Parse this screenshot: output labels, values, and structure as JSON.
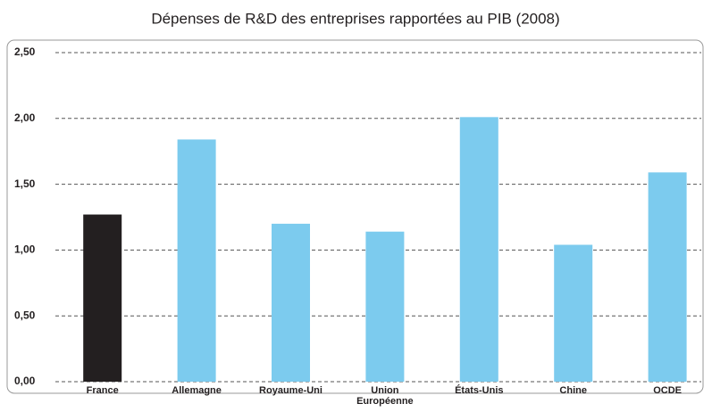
{
  "chart_data": {
    "type": "bar",
    "title": "Dépenses de R&D des entreprises rapportées au PIB (2008)",
    "categories": [
      "France",
      "Allemagne",
      "Royaume-Uni",
      "Union Européenne",
      "États-Unis",
      "Chine",
      "OCDE"
    ],
    "values": [
      1.27,
      1.84,
      1.2,
      1.14,
      2.01,
      1.04,
      1.59
    ],
    "colors": [
      "#231f20",
      "#7ccbee",
      "#7ccbee",
      "#7ccbee",
      "#7ccbee",
      "#7ccbee",
      "#7ccbee"
    ],
    "ylim": [
      0,
      2.5
    ],
    "yticks": [
      {
        "value": 0,
        "label": "0,00"
      },
      {
        "value": 0.5,
        "label": "0,50"
      },
      {
        "value": 1,
        "label": "1,00"
      },
      {
        "value": 1.5,
        "label": "1,50"
      },
      {
        "value": 2,
        "label": "2,00"
      },
      {
        "value": 2.5,
        "label": "2,50"
      }
    ],
    "grid": true
  }
}
